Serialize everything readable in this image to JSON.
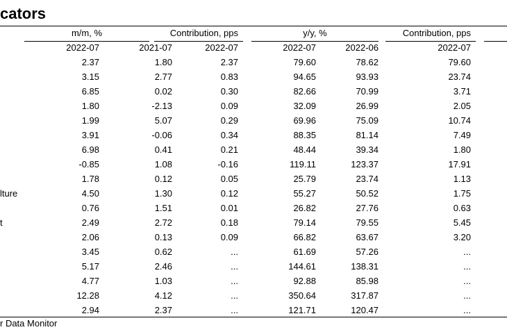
{
  "header": {
    "title": "cators"
  },
  "table": {
    "groups": [
      "m/m, %",
      "Contribution, pps",
      "y/y, %",
      "Contribution, pps"
    ],
    "columns": [
      "2022-07",
      "2021-07",
      "2022-07",
      "2022-07",
      "2022-06",
      "2022-07"
    ],
    "rows": [
      {
        "cells": [
          "2.37",
          "1.80",
          "2.37",
          "79.60",
          "78.62",
          "79.60"
        ]
      },
      {
        "cells": [
          "3.15",
          "2.77",
          "0.83",
          "94.65",
          "93.93",
          "23.74"
        ]
      },
      {
        "cells": [
          "6.85",
          "0.02",
          "0.30",
          "82.66",
          "70.99",
          "3.71"
        ]
      },
      {
        "cells": [
          "1.80",
          "-2.13",
          "0.09",
          "32.09",
          "26.99",
          "2.05"
        ]
      },
      {
        "cells": [
          "1.99",
          "5.07",
          "0.29",
          "69.96",
          "75.09",
          "10.74"
        ]
      },
      {
        "cells": [
          "3.91",
          "-0.06",
          "0.34",
          "88.35",
          "81.14",
          "7.49"
        ]
      },
      {
        "cells": [
          "6.98",
          "0.41",
          "0.21",
          "48.44",
          "39.34",
          "1.80"
        ]
      },
      {
        "cells": [
          "-0.85",
          "1.08",
          "-0.16",
          "119.11",
          "123.37",
          "17.91"
        ]
      },
      {
        "cells": [
          "1.78",
          "0.12",
          "0.05",
          "25.79",
          "23.74",
          "1.13"
        ]
      },
      {
        "label": "lture",
        "cells": [
          "4.50",
          "1.30",
          "0.12",
          "55.27",
          "50.52",
          "1.75"
        ]
      },
      {
        "cells": [
          "0.76",
          "1.51",
          "0.01",
          "26.82",
          "27.76",
          "0.63"
        ]
      },
      {
        "label": "t",
        "cells": [
          "2.49",
          "2.72",
          "0.18",
          "79.14",
          "79.55",
          "5.45"
        ]
      },
      {
        "cells": [
          "2.06",
          "0.13",
          "0.09",
          "66.82",
          "63.67",
          "3.20"
        ]
      },
      {
        "cells": [
          "3.45",
          "0.62",
          "...",
          "61.69",
          "57.26",
          "..."
        ]
      },
      {
        "cells": [
          "5.17",
          "2.46",
          "...",
          "144.61",
          "138.31",
          "..."
        ]
      },
      {
        "cells": [
          "4.77",
          "1.03",
          "...",
          "92.88",
          "85.98",
          "..."
        ]
      },
      {
        "cells": [
          "12.28",
          "4.12",
          "...",
          "350.64",
          "317.87",
          "..."
        ]
      },
      {
        "cells": [
          "2.94",
          "2.37",
          "...",
          "121.71",
          "120.47",
          "..."
        ]
      }
    ]
  },
  "footer": {
    "source": "r Data Monitor"
  }
}
